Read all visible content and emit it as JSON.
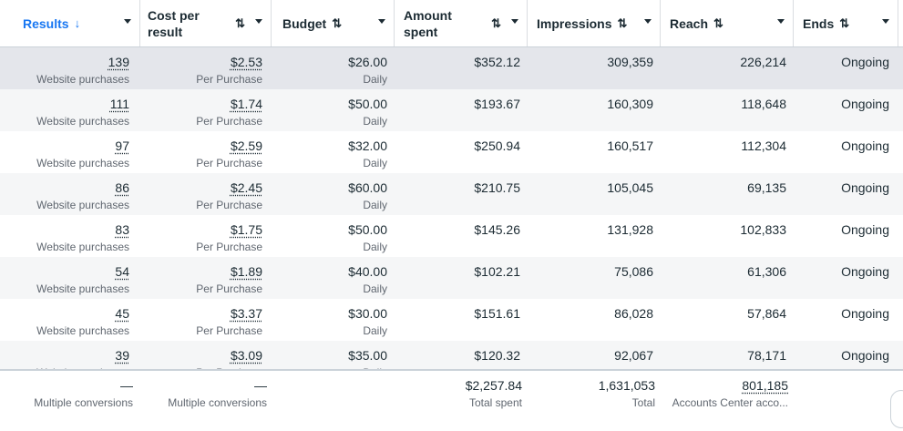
{
  "header": {
    "columns": [
      {
        "label": "Results",
        "sort": "↓"
      },
      {
        "label": "Cost per result",
        "sort": "⇅"
      },
      {
        "label": "Budget",
        "sort": "⇅"
      },
      {
        "label": "Amount spent",
        "sort": "⇅"
      },
      {
        "label": "Impressions",
        "sort": "⇅"
      },
      {
        "label": "Reach",
        "sort": "⇅"
      },
      {
        "label": "Ends",
        "sort": "⇅"
      }
    ]
  },
  "rows": [
    {
      "results": "139",
      "results_sub": "Website purchases",
      "cpr": "$2.53",
      "cpr_sub": "Per Purchase",
      "budget": "$26.00",
      "budget_sub": "Daily",
      "spent": "$352.12",
      "impr": "309,359",
      "reach": "226,214",
      "ends": "Ongoing"
    },
    {
      "results": "111",
      "results_sub": "Website purchases",
      "cpr": "$1.74",
      "cpr_sub": "Per Purchase",
      "budget": "$50.00",
      "budget_sub": "Daily",
      "spent": "$193.67",
      "impr": "160,309",
      "reach": "118,648",
      "ends": "Ongoing"
    },
    {
      "results": "97",
      "results_sub": "Website purchases",
      "cpr": "$2.59",
      "cpr_sub": "Per Purchase",
      "budget": "$32.00",
      "budget_sub": "Daily",
      "spent": "$250.94",
      "impr": "160,517",
      "reach": "112,304",
      "ends": "Ongoing"
    },
    {
      "results": "86",
      "results_sub": "Website purchases",
      "cpr": "$2.45",
      "cpr_sub": "Per Purchase",
      "budget": "$60.00",
      "budget_sub": "Daily",
      "spent": "$210.75",
      "impr": "105,045",
      "reach": "69,135",
      "ends": "Ongoing"
    },
    {
      "results": "83",
      "results_sub": "Website purchases",
      "cpr": "$1.75",
      "cpr_sub": "Per Purchase",
      "budget": "$50.00",
      "budget_sub": "Daily",
      "spent": "$145.26",
      "impr": "131,928",
      "reach": "102,833",
      "ends": "Ongoing"
    },
    {
      "results": "54",
      "results_sub": "Website purchases",
      "cpr": "$1.89",
      "cpr_sub": "Per Purchase",
      "budget": "$40.00",
      "budget_sub": "Daily",
      "spent": "$102.21",
      "impr": "75,086",
      "reach": "61,306",
      "ends": "Ongoing"
    },
    {
      "results": "45",
      "results_sub": "Website purchases",
      "cpr": "$3.37",
      "cpr_sub": "Per Purchase",
      "budget": "$30.00",
      "budget_sub": "Daily",
      "spent": "$151.61",
      "impr": "86,028",
      "reach": "57,864",
      "ends": "Ongoing"
    },
    {
      "results": "39",
      "results_sub": "Website purchases",
      "cpr": "$3.09",
      "cpr_sub": "Per Purchase",
      "budget": "$35.00",
      "budget_sub": "Daily",
      "spent": "$120.32",
      "impr": "92,067",
      "reach": "78,171",
      "ends": "Ongoing"
    }
  ],
  "footer": {
    "results": "—",
    "results_sub": "Multiple conversions",
    "cpr": "—",
    "cpr_sub": "Multiple conversions",
    "spent": "$2,257.84",
    "spent_sub": "Total spent",
    "impr": "1,631,053",
    "impr_sub": "Total",
    "reach": "801,185",
    "reach_sub": "Accounts Center acco..."
  },
  "colors": {
    "accent": "#1877f2",
    "row_highlight": "#e4e6eb",
    "row_alt": "#f5f6f7"
  }
}
